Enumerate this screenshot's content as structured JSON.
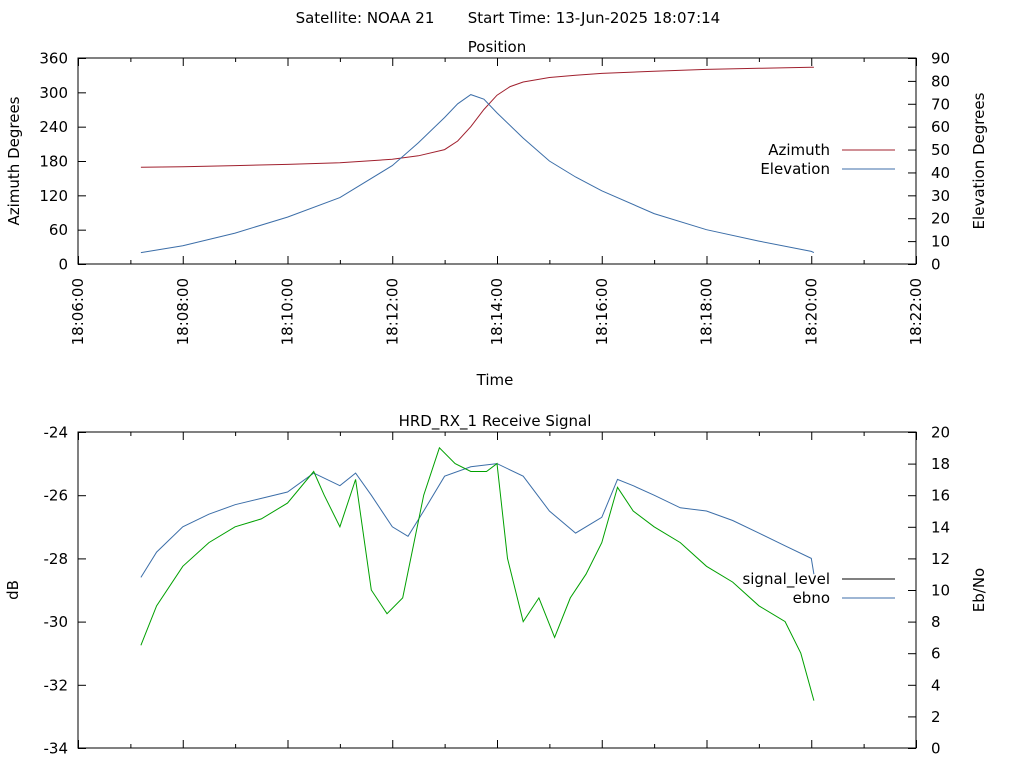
{
  "header": {
    "satellite_label": "Satellite: NOAA 21",
    "start_time_label": "Start Time: 13-Jun-2025 18:07:14"
  },
  "chart_data": [
    {
      "type": "line",
      "title": "Position",
      "xlabel": "Time",
      "ylabel": "Azimuth Degrees",
      "y2label": "Elevation Degrees",
      "x_unit": "minutes after 18:00:00",
      "xlim": [
        6,
        22
      ],
      "ylim": [
        0,
        360
      ],
      "y2lim": [
        0,
        90
      ],
      "x_tick_labels": [
        "18:06:00",
        "18:08:00",
        "18:10:00",
        "18:12:00",
        "18:14:00",
        "18:16:00",
        "18:18:00",
        "18:20:00",
        "18:22:00"
      ],
      "y_ticks": [
        0,
        60,
        120,
        180,
        240,
        300,
        360
      ],
      "y2_ticks": [
        0,
        10,
        20,
        30,
        40,
        50,
        60,
        70,
        80,
        90
      ],
      "legend_position": "right",
      "series": [
        {
          "name": "Azimuth",
          "axis": "left",
          "color": "#a0202e",
          "x": [
            7.2,
            8,
            9,
            10,
            11,
            12,
            12.5,
            13,
            13.25,
            13.5,
            13.75,
            14,
            14.25,
            14.5,
            15,
            15.5,
            16,
            17,
            18,
            19,
            20,
            20.05
          ],
          "values": [
            169,
            170,
            172,
            174,
            177,
            183,
            189,
            200,
            215,
            240,
            270,
            295,
            310,
            318,
            326,
            330,
            333,
            337,
            340,
            342,
            344,
            344
          ]
        },
        {
          "name": "Elevation",
          "axis": "right",
          "color": "#3c6ea8",
          "x": [
            7.2,
            8,
            9,
            10,
            11,
            12,
            12.5,
            13,
            13.25,
            13.5,
            13.75,
            14,
            14.5,
            15,
            15.5,
            16,
            17,
            18,
            19,
            20,
            20.05
          ],
          "values": [
            5,
            8,
            13.5,
            20.5,
            29,
            43,
            53,
            64,
            70,
            74,
            72,
            66,
            55,
            45,
            38,
            32,
            22,
            15,
            10,
            5.5,
            5
          ]
        }
      ]
    },
    {
      "type": "line",
      "title": "HRD_RX_1 Receive Signal",
      "ylabel": "dB",
      "y2label": "Eb/No",
      "xlim": [
        6,
        22
      ],
      "ylim": [
        -34,
        -24
      ],
      "y2lim": [
        0,
        20
      ],
      "y_ticks": [
        -34,
        -32,
        -30,
        -28,
        -26,
        -24
      ],
      "y2_ticks": [
        0,
        2,
        4,
        6,
        8,
        10,
        12,
        14,
        16,
        18,
        20
      ],
      "legend_position": "right",
      "series": [
        {
          "name": "signal_level",
          "axis": "left",
          "color": "#000000",
          "x": [],
          "values": []
        },
        {
          "name": "ebno",
          "axis": "left",
          "color": "#3c6ea8",
          "x": [
            7.2,
            7.5,
            8,
            8.5,
            9,
            9.5,
            10,
            10.5,
            11,
            11.3,
            11.6,
            12,
            12.3,
            12.6,
            13,
            13.5,
            14,
            14.5,
            15,
            15.5,
            16,
            16.3,
            16.6,
            17,
            17.5,
            18,
            18.5,
            19,
            19.5,
            20,
            20.05
          ],
          "values": [
            -28.6,
            -27.8,
            -27.0,
            -26.6,
            -26.3,
            -26.1,
            -25.9,
            -25.3,
            -25.7,
            -25.3,
            -26.0,
            -27.0,
            -27.3,
            -26.5,
            -25.4,
            -25.1,
            -25.0,
            -25.4,
            -26.5,
            -27.2,
            -26.7,
            -25.5,
            -25.7,
            -26.0,
            -26.4,
            -26.5,
            -26.8,
            -27.2,
            -27.6,
            -28.0,
            -28.5
          ]
        },
        {
          "name": "",
          "axis": "right",
          "color": "#00a000",
          "x": [
            7.2,
            7.5,
            8,
            8.5,
            9,
            9.5,
            10,
            10.5,
            10.7,
            11,
            11.3,
            11.6,
            11.9,
            12.2,
            12.6,
            12.9,
            13.2,
            13.5,
            13.8,
            14.0,
            14.2,
            14.5,
            14.8,
            15.1,
            15.4,
            15.7,
            16,
            16.3,
            16.6,
            17,
            17.5,
            18,
            18.5,
            19,
            19.5,
            19.8,
            20.05
          ],
          "values": [
            6.5,
            9.0,
            11.5,
            13.0,
            14.0,
            14.5,
            15.5,
            17.5,
            16.0,
            14.0,
            17.0,
            10.0,
            8.5,
            9.5,
            16.0,
            19.0,
            18.0,
            17.5,
            17.5,
            18.0,
            12.0,
            8.0,
            9.5,
            7.0,
            9.5,
            11.0,
            13.0,
            16.5,
            15.0,
            14.0,
            13.0,
            11.5,
            10.5,
            9.0,
            8.0,
            6.0,
            3.0
          ]
        }
      ]
    }
  ]
}
